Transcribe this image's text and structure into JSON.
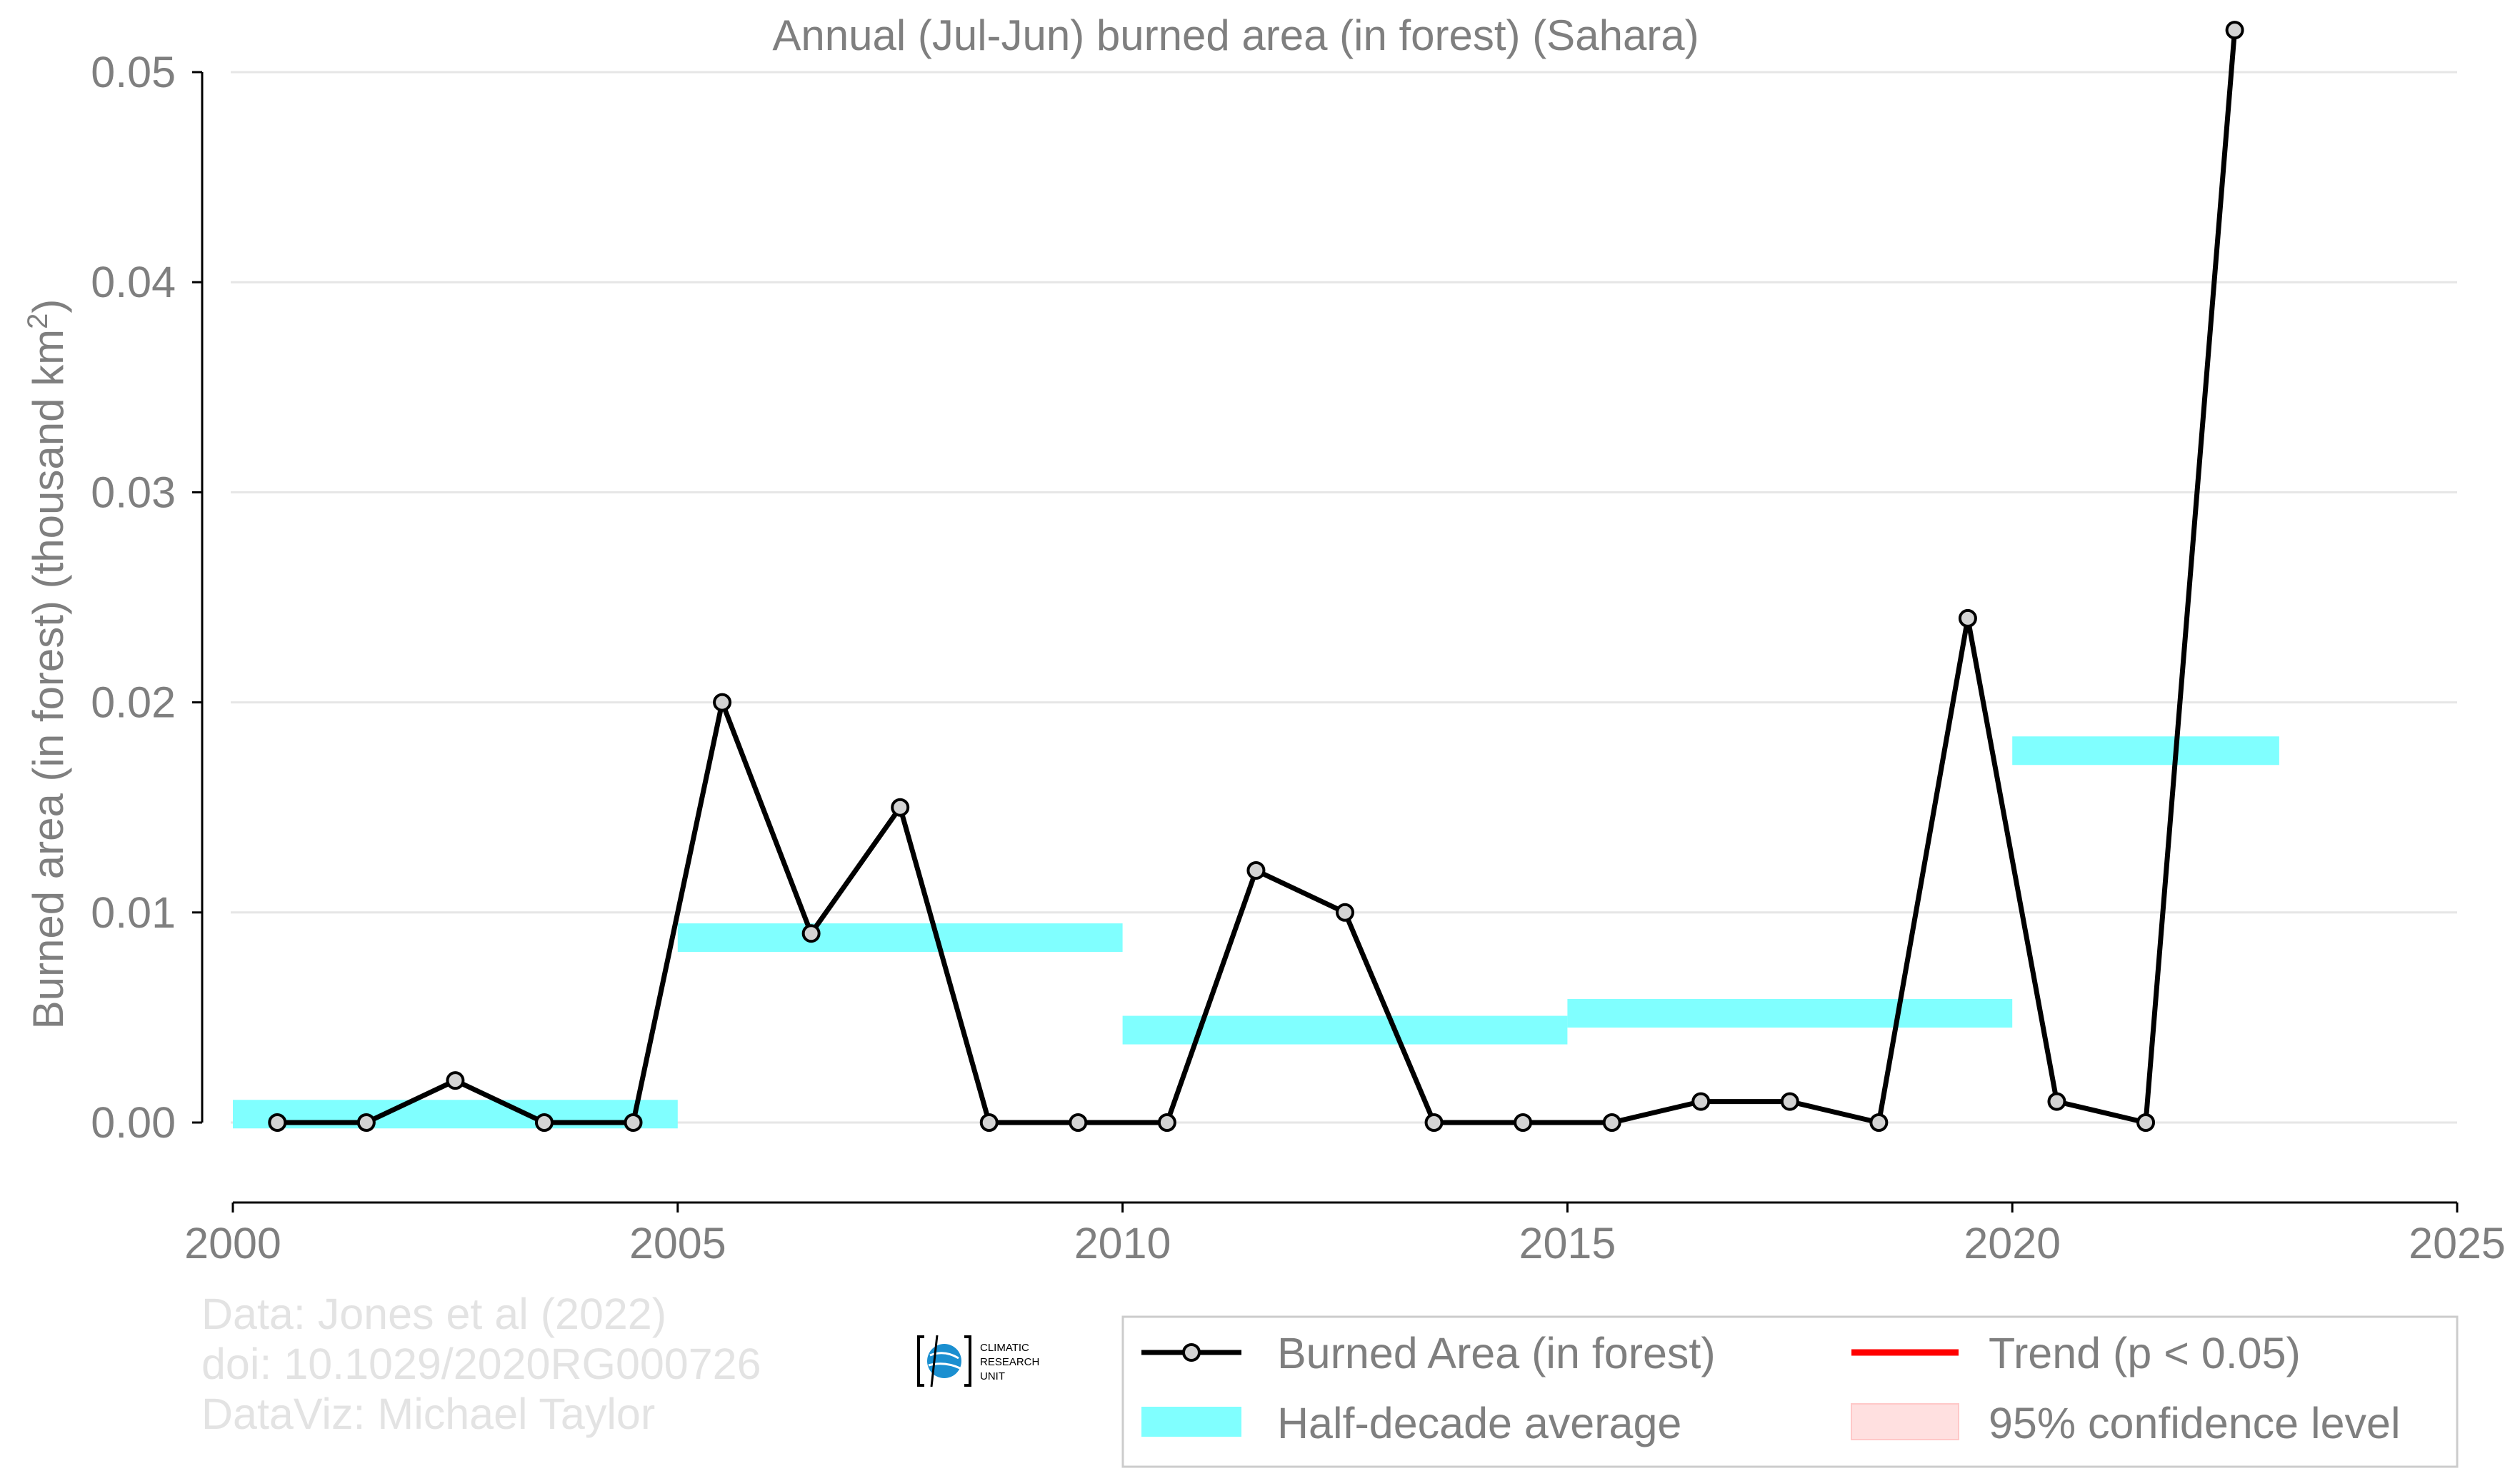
{
  "chart_data": {
    "type": "line",
    "title": "Annual (Jul-Jun) burned area (in forest) (Sahara)",
    "ylabel_prefix": "Burned area (in forest) (thousand km",
    "ylabel_sup": "2",
    "ylabel_suffix": ")",
    "xlabel": "",
    "xlim": [
      2000,
      2025
    ],
    "ylim": [
      -0.0042,
      0.0535
    ],
    "x_ticks": [
      2000,
      2005,
      2010,
      2015,
      2020,
      2025
    ],
    "x_tick_labels": [
      "2000",
      "2005",
      "2010",
      "2015",
      "2020",
      "2025"
    ],
    "y_ticks": [
      0.0,
      0.01,
      0.02,
      0.03,
      0.04,
      0.05
    ],
    "y_tick_labels": [
      "0.00",
      "0.01",
      "0.02",
      "0.03",
      "0.04",
      "0.05"
    ],
    "grid": true,
    "legend_position": "bottom-right",
    "series": [
      {
        "name": "Burned Area (in forest)",
        "color": "#000000",
        "marker_fill": "#d3d3d3",
        "x": [
          2000.5,
          2001.5,
          2002.5,
          2003.5,
          2004.5,
          2005.5,
          2006.5,
          2007.5,
          2008.5,
          2009.5,
          2010.5,
          2011.5,
          2012.5,
          2013.5,
          2014.5,
          2015.5,
          2016.5,
          2017.5,
          2018.5,
          2019.5,
          2020.5,
          2021.5,
          2022.5
        ],
        "y": [
          0.0,
          0.0,
          0.002,
          0.0,
          0.0,
          0.02,
          0.009,
          0.015,
          0.0,
          0.0,
          0.0,
          0.012,
          0.01,
          0.0,
          0.0,
          0.0,
          0.001,
          0.001,
          0.0,
          0.024,
          0.001,
          0.0,
          0.052
        ]
      },
      {
        "name": "Half-decade average",
        "color": "#80ffff",
        "segments": [
          {
            "x_start": 2000,
            "x_end": 2005,
            "value": 0.0004
          },
          {
            "x_start": 2005,
            "x_end": 2010,
            "value": 0.0088
          },
          {
            "x_start": 2010,
            "x_end": 2015,
            "value": 0.0044
          },
          {
            "x_start": 2015,
            "x_end": 2020,
            "value": 0.0052
          },
          {
            "x_start": 2020,
            "x_end": 2023,
            "value": 0.0177
          }
        ]
      }
    ],
    "legend": [
      {
        "label": "Burned Area (in forest)",
        "kind": "line-marker",
        "color": "#000000"
      },
      {
        "label": "Trend (p < 0.05)",
        "kind": "line",
        "color": "#ff0000"
      },
      {
        "label": "Half-decade average",
        "kind": "band",
        "color": "#80ffff"
      },
      {
        "label": "95% confidence level",
        "kind": "band",
        "color": "#ffe0e0"
      }
    ]
  },
  "credits": {
    "line1": "Data: Jones et al (2022)",
    "line2": "doi: 10.1029/2020RG000726",
    "line3": "DataViz: Michael Taylor"
  },
  "logo": {
    "text_lines": [
      "CLIMATIC",
      "RESEARCH",
      "UNIT"
    ],
    "color": "#1a8fd0"
  },
  "colors": {
    "text": "#7f7f7f",
    "grid": "#e6e6e6",
    "axis": "#000000"
  }
}
